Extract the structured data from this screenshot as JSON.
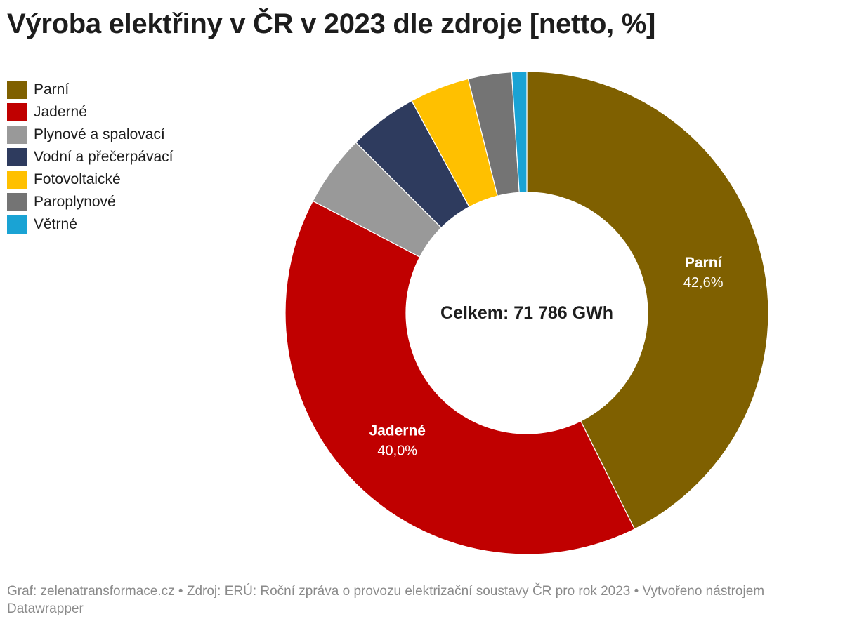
{
  "title": "Výroba elektřiny v ČR v 2023 dle zdroje [netto, %]",
  "center_label": "Celkem: 71 786 GWh",
  "footer": "Graf: zelenatransformace.cz • Zdroj: ERÚ: Roční zpráva o provozu elektrizační soustavy ČR pro rok 2023 • Vytvořeno nástrojem Datawrapper",
  "legend_placement": "top-left",
  "chart_data": {
    "type": "pie",
    "donut": true,
    "title": "Výroba elektřiny v ČR v 2023 dle zdroje [netto, %]",
    "center_text": "Celkem: 71 786 GWh",
    "categories": [
      "Parní",
      "Jaderné",
      "Plynové a spalovací",
      "Vodní a přečerpávací",
      "Fotovoltaické",
      "Paroplynové",
      "Větrné"
    ],
    "values": [
      42.6,
      40.0,
      4.8,
      4.6,
      4.0,
      2.9,
      1.0
    ],
    "colors": [
      "#7f6000",
      "#c00000",
      "#999999",
      "#2e3b5e",
      "#ffc000",
      "#747474",
      "#1aa3d4"
    ],
    "data_labels": [
      {
        "name": "Parní",
        "value": "42,6%"
      },
      {
        "name": "Jaderné",
        "value": "40,0%"
      }
    ]
  }
}
